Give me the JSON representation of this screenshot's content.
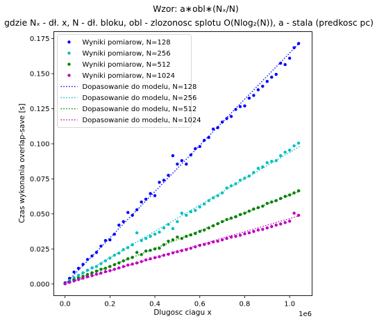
{
  "chart_data": {
    "type": "scatter",
    "title_line1": "Wzor: a∗obl∗(Nₓ/N)",
    "title_line2": "gdzie Nₓ - dł. x, N - dł. bloku,  obl - zlozonosc splotu O(Nlog₂(N)), a - stala (predkosc pc)",
    "xlabel": "Dlugosc ciagu x",
    "ylabel": "Czas wykonania overlap-save [s]",
    "x_offset_label": "1e6",
    "xlim": [
      -0.05,
      1.1
    ],
    "ylim": [
      -0.0083,
      0.18
    ],
    "xticks": [
      0.0,
      0.2,
      0.4,
      0.6,
      0.8,
      1.0
    ],
    "xtick_labels": [
      "0.0",
      "0.2",
      "0.4",
      "0.6",
      "0.8",
      "1.0"
    ],
    "yticks": [
      0.0,
      0.025,
      0.05,
      0.075,
      0.1,
      0.125,
      0.15,
      0.175
    ],
    "ytick_labels": [
      "0.000",
      "0.025",
      "0.050",
      "0.075",
      "0.100",
      "0.125",
      "0.150",
      "0.175"
    ],
    "legend_position": "upper-left",
    "grid": false,
    "x": [
      0.0,
      0.02,
      0.04,
      0.06,
      0.08,
      0.1,
      0.12,
      0.14,
      0.16,
      0.18,
      0.2,
      0.22,
      0.24,
      0.26,
      0.28,
      0.3,
      0.32,
      0.34,
      0.36,
      0.38,
      0.4,
      0.42,
      0.44,
      0.46,
      0.48,
      0.5,
      0.52,
      0.54,
      0.56,
      0.58,
      0.6,
      0.62,
      0.64,
      0.66,
      0.68,
      0.7,
      0.72,
      0.74,
      0.76,
      0.78,
      0.8,
      0.82,
      0.84,
      0.86,
      0.88,
      0.9,
      0.92,
      0.94,
      0.96,
      0.98,
      1.0,
      1.02,
      1.04
    ],
    "series": [
      {
        "name": "Wyniki pomiarow, N=128",
        "kind": "points",
        "color": "#0000ff",
        "values": [
          0.0008,
          0.004,
          0.0085,
          0.0112,
          0.014,
          0.0175,
          0.02,
          0.0225,
          0.027,
          0.031,
          0.0315,
          0.0355,
          0.042,
          0.0445,
          0.051,
          0.049,
          0.053,
          0.0585,
          0.0605,
          0.0645,
          0.063,
          0.0725,
          0.074,
          0.0775,
          0.0915,
          0.0855,
          0.088,
          0.0855,
          0.092,
          0.0965,
          0.098,
          0.1025,
          0.1045,
          0.1105,
          0.1115,
          0.1155,
          0.118,
          0.1195,
          0.1245,
          0.1265,
          0.127,
          0.1325,
          0.1345,
          0.1385,
          0.141,
          0.1445,
          0.1475,
          0.1495,
          0.1575,
          0.1565,
          0.161,
          0.1685,
          0.1715
        ]
      },
      {
        "name": "Wyniki pomiarow, N=256",
        "kind": "points",
        "color": "#00bfbf",
        "values": [
          0.0003,
          0.0025,
          0.0045,
          0.0062,
          0.008,
          0.0098,
          0.0115,
          0.0125,
          0.0145,
          0.0165,
          0.0185,
          0.0205,
          0.022,
          0.0245,
          0.026,
          0.028,
          0.0365,
          0.031,
          0.0325,
          0.034,
          0.0355,
          0.037,
          0.04,
          0.0425,
          0.0395,
          0.0445,
          0.0505,
          0.049,
          0.0515,
          0.0525,
          0.055,
          0.057,
          0.0595,
          0.0615,
          0.063,
          0.065,
          0.0685,
          0.07,
          0.0715,
          0.074,
          0.0755,
          0.077,
          0.0795,
          0.0825,
          0.0835,
          0.0865,
          0.0875,
          0.088,
          0.0915,
          0.094,
          0.0955,
          0.0985,
          0.1005
        ]
      },
      {
        "name": "Wyniki pomiarow, N=512",
        "kind": "points",
        "color": "#008000",
        "values": [
          0.0002,
          0.0015,
          0.003,
          0.0042,
          0.0055,
          0.0068,
          0.008,
          0.0092,
          0.0105,
          0.0112,
          0.0125,
          0.0138,
          0.015,
          0.0165,
          0.018,
          0.019,
          0.0225,
          0.021,
          0.0235,
          0.024,
          0.025,
          0.0255,
          0.028,
          0.0305,
          0.0315,
          0.0335,
          0.0325,
          0.034,
          0.035,
          0.036,
          0.0375,
          0.0385,
          0.04,
          0.0415,
          0.043,
          0.0445,
          0.046,
          0.047,
          0.048,
          0.0495,
          0.0505,
          0.052,
          0.0535,
          0.0545,
          0.0555,
          0.0575,
          0.0585,
          0.0595,
          0.061,
          0.0625,
          0.0635,
          0.065,
          0.0665
        ]
      },
      {
        "name": "Wyniki pomiarow, N=1024",
        "kind": "points",
        "color": "#bf00bf",
        "values": [
          0.0002,
          0.0012,
          0.0022,
          0.0032,
          0.0042,
          0.0052,
          0.006,
          0.007,
          0.0078,
          0.0088,
          0.0095,
          0.0105,
          0.0115,
          0.0125,
          0.0135,
          0.0142,
          0.015,
          0.016,
          0.0172,
          0.018,
          0.0188,
          0.0195,
          0.0205,
          0.0212,
          0.0222,
          0.023,
          0.0238,
          0.0245,
          0.0255,
          0.0265,
          0.0275,
          0.0282,
          0.029,
          0.03,
          0.0305,
          0.0315,
          0.0325,
          0.0335,
          0.034,
          0.0348,
          0.0358,
          0.0365,
          0.0375,
          0.0385,
          0.039,
          0.04,
          0.041,
          0.042,
          0.0428,
          0.0438,
          0.0448,
          0.0505,
          0.049
        ]
      },
      {
        "name": "Dopasowanie do modelu, N=128",
        "kind": "fit",
        "color": "#0000ff",
        "x": [
          0.0,
          1.05
        ],
        "values": [
          0.0,
          0.173
        ]
      },
      {
        "name": "Dopasowanie do modelu, N=256",
        "kind": "fit",
        "color": "#00bfbf",
        "x": [
          0.0,
          1.05
        ],
        "values": [
          0.0,
          0.0985
        ]
      },
      {
        "name": "Dopasowanie do modelu, N=512",
        "kind": "fit",
        "color": "#008000",
        "x": [
          0.0,
          1.05
        ],
        "values": [
          0.0,
          0.0665
        ]
      },
      {
        "name": "Dopasowanie do modelu, N=1024",
        "kind": "fit",
        "color": "#bf00bf",
        "x": [
          0.0,
          1.05
        ],
        "values": [
          0.0,
          0.049
        ]
      }
    ]
  }
}
